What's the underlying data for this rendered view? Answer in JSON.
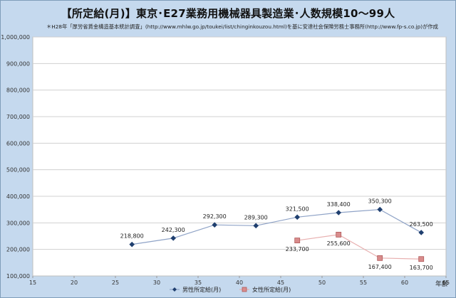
{
  "chart_data": {
    "type": "line",
    "title": "【所定給(月)】東京･E27業務用機械器具製造業･人数規模10～99人",
    "subtitle": "＊H28年「厚労省賃金構造基本統計調査」(http://www.mhlw.go.jp/toukei/list/chinginkouzou.html)を基に安達社会保険労務士事務所(http://www.fp-s.co.jp)が作成",
    "xlabel": "年齢",
    "ylabel": "",
    "xlim": [
      15,
      65
    ],
    "ylim": [
      100000,
      1000000
    ],
    "x_ticks": [
      "15",
      "20",
      "25",
      "30",
      "35",
      "40",
      "45",
      "50",
      "55",
      "60",
      "65"
    ],
    "y_ticks": [
      "100,000",
      "200,000",
      "300,000",
      "400,000",
      "500,000",
      "600,000",
      "700,000",
      "800,000",
      "900,000",
      "1,000,000"
    ],
    "grid": "horizontal",
    "legend_position": "bottom",
    "series": [
      {
        "name": "男性所定給(月)",
        "color": "#1f3f6f",
        "line_color": "#8fa3c7",
        "marker": "diamond",
        "points": [
          {
            "x": 27,
            "y": 218800,
            "label": "218,800"
          },
          {
            "x": 32,
            "y": 242300,
            "label": "242,300"
          },
          {
            "x": 37,
            "y": 292300,
            "label": "292,300"
          },
          {
            "x": 42,
            "y": 289300,
            "label": "289,300"
          },
          {
            "x": 47,
            "y": 321500,
            "label": "321,500"
          },
          {
            "x": 52,
            "y": 338400,
            "label": "338,400"
          },
          {
            "x": 57,
            "y": 350300,
            "label": "350,300"
          },
          {
            "x": 62,
            "y": 263500,
            "label": "263,500"
          }
        ]
      },
      {
        "name": "女性所定給(月)",
        "color": "#d98c8c",
        "line_color": "#e8b0b0",
        "marker": "square",
        "points": [
          {
            "x": 47,
            "y": 233700,
            "label": "233,700"
          },
          {
            "x": 52,
            "y": 255600,
            "label": "255,600"
          },
          {
            "x": 57,
            "y": 167400,
            "label": "167,400"
          },
          {
            "x": 62,
            "y": 163700,
            "label": "163,700"
          }
        ]
      }
    ]
  }
}
